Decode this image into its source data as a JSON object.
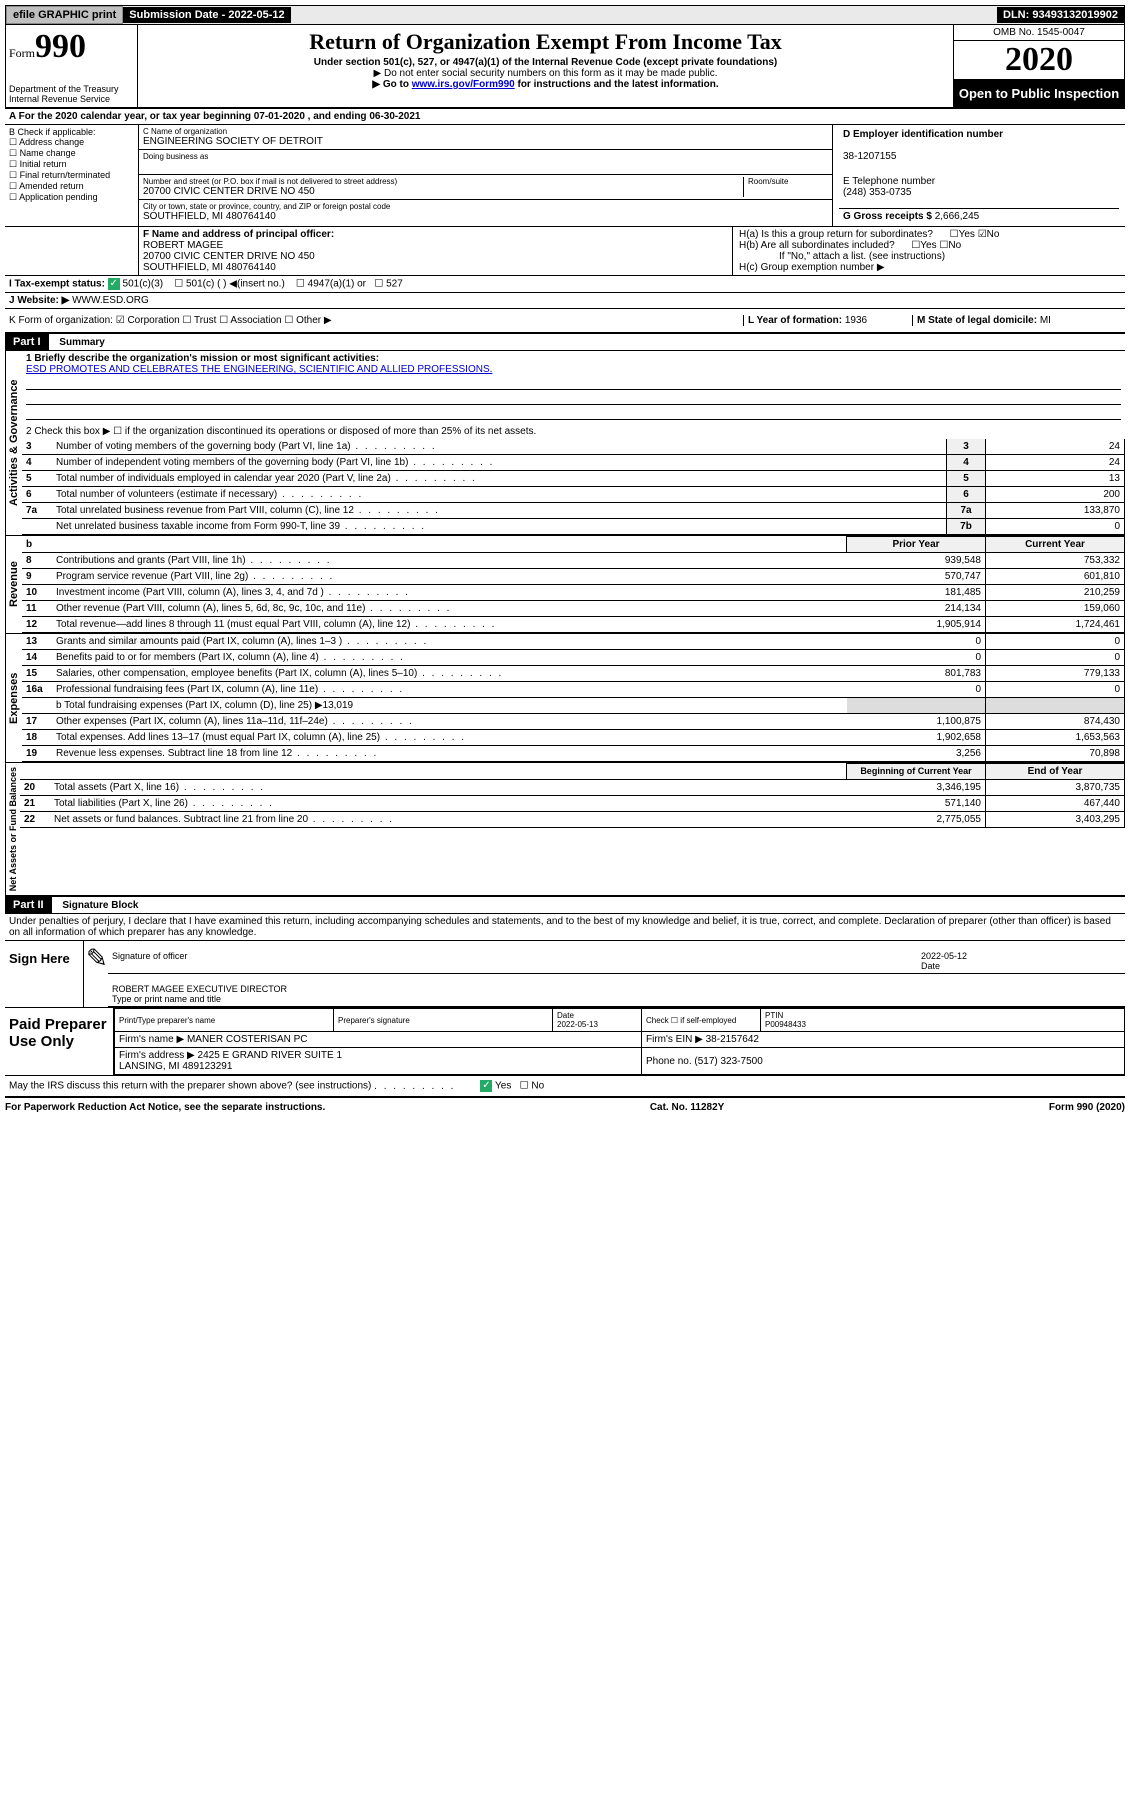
{
  "topbar": {
    "efile": "efile GRAPHIC print",
    "sub_label": "Submission Date - ",
    "sub_date": "2022-05-12",
    "dln": "DLN: 93493132019902"
  },
  "header": {
    "form_label": "Form",
    "form_num": "990",
    "dept": "Department of the Treasury\nInternal Revenue Service",
    "title": "Return of Organization Exempt From Income Tax",
    "sub1": "Under section 501(c), 527, or 4947(a)(1) of the Internal Revenue Code (except private foundations)",
    "sub2": "▶ Do not enter social security numbers on this form as it may be made public.",
    "sub3_pre": "▶ Go to ",
    "sub3_link": "www.irs.gov/Form990",
    "sub3_post": " for instructions and the latest information.",
    "omb": "OMB No. 1545-0047",
    "year": "2020",
    "open": "Open to Public Inspection"
  },
  "line_a": "A For the 2020 calendar year, or tax year beginning 07-01-2020   , and ending 06-30-2021",
  "b": {
    "hdr": "B Check if applicable:",
    "opts": [
      "☐ Address change",
      "☐ Name change",
      "☐ Initial return",
      "☐ Final return/terminated",
      "☐ Amended return",
      "☐ Application pending"
    ]
  },
  "c": {
    "name_lbl": "C Name of organization",
    "name": "ENGINEERING SOCIETY OF DETROIT",
    "dba_lbl": "Doing business as",
    "addr_lbl": "Number and street (or P.O. box if mail is not delivered to street address)",
    "room_lbl": "Room/suite",
    "addr": "20700 CIVIC CENTER DRIVE NO 450",
    "city_lbl": "City or town, state or province, country, and ZIP or foreign postal code",
    "city": "SOUTHFIELD, MI  480764140"
  },
  "d": {
    "lbl": "D Employer identification number",
    "val": "38-1207155"
  },
  "e": {
    "lbl": "E Telephone number",
    "val": "(248) 353-0735"
  },
  "g": {
    "lbl": "G Gross receipts $ ",
    "val": "2,666,245"
  },
  "f": {
    "lbl": "F Name and address of principal officer:",
    "name": "ROBERT MAGEE",
    "addr1": "20700 CIVIC CENTER DRIVE NO 450",
    "addr2": "SOUTHFIELD, MI  480764140"
  },
  "h": {
    "ha": "H(a)  Is this a group return for subordinates?",
    "hb": "H(b)  Are all subordinates included?",
    "note": "If \"No,\" attach a list. (see instructions)",
    "hc": "H(c)  Group exemption number ▶"
  },
  "i": {
    "lbl": "I   Tax-exempt status:",
    "o1": "501(c)(3)",
    "o2": "501(c) (  ) ◀(insert no.)",
    "o3": "4947(a)(1) or",
    "o4": "527"
  },
  "j": {
    "lbl": "J   Website: ▶ ",
    "val": "WWW.ESD.ORG"
  },
  "k": "K Form of organization:  ☑ Corporation  ☐ Trust  ☐ Association  ☐ Other ▶",
  "l": {
    "lbl": "L Year of formation: ",
    "val": "1936"
  },
  "m": {
    "lbl": "M State of legal domicile: ",
    "val": "MI"
  },
  "part1": {
    "hdr": "Part I",
    "title": "Summary",
    "q1_lbl": "1  Briefly describe the organization's mission or most significant activities:",
    "q1_val": "ESD PROMOTES AND CELEBRATES THE ENGINEERING, SCIENTIFIC AND ALLIED PROFESSIONS.",
    "q2": "2   Check this box ▶ ☐  if the organization discontinued its operations or disposed of more than 25% of its net assets.",
    "gov_rows": [
      {
        "n": "3",
        "t": "Number of voting members of the governing body (Part VI, line 1a)",
        "c": "3",
        "v": "24"
      },
      {
        "n": "4",
        "t": "Number of independent voting members of the governing body (Part VI, line 1b)",
        "c": "4",
        "v": "24"
      },
      {
        "n": "5",
        "t": "Total number of individuals employed in calendar year 2020 (Part V, line 2a)",
        "c": "5",
        "v": "13"
      },
      {
        "n": "6",
        "t": "Total number of volunteers (estimate if necessary)",
        "c": "6",
        "v": "200"
      },
      {
        "n": "7a",
        "t": "Total unrelated business revenue from Part VIII, column (C), line 12",
        "c": "7a",
        "v": "133,870"
      },
      {
        "n": "",
        "t": "Net unrelated business taxable income from Form 990-T, line 39",
        "c": "7b",
        "v": "0"
      }
    ],
    "col_prior": "Prior Year",
    "col_curr": "Current Year",
    "rev_rows": [
      {
        "n": "8",
        "t": "Contributions and grants (Part VIII, line 1h)",
        "p": "939,548",
        "c": "753,332"
      },
      {
        "n": "9",
        "t": "Program service revenue (Part VIII, line 2g)",
        "p": "570,747",
        "c": "601,810"
      },
      {
        "n": "10",
        "t": "Investment income (Part VIII, column (A), lines 3, 4, and 7d )",
        "p": "181,485",
        "c": "210,259"
      },
      {
        "n": "11",
        "t": "Other revenue (Part VIII, column (A), lines 5, 6d, 8c, 9c, 10c, and 11e)",
        "p": "214,134",
        "c": "159,060"
      },
      {
        "n": "12",
        "t": "Total revenue—add lines 8 through 11 (must equal Part VIII, column (A), line 12)",
        "p": "1,905,914",
        "c": "1,724,461"
      }
    ],
    "exp_rows": [
      {
        "n": "13",
        "t": "Grants and similar amounts paid (Part IX, column (A), lines 1–3 )",
        "p": "0",
        "c": "0"
      },
      {
        "n": "14",
        "t": "Benefits paid to or for members (Part IX, column (A), line 4)",
        "p": "0",
        "c": "0"
      },
      {
        "n": "15",
        "t": "Salaries, other compensation, employee benefits (Part IX, column (A), lines 5–10)",
        "p": "801,783",
        "c": "779,133"
      },
      {
        "n": "16a",
        "t": "Professional fundraising fees (Part IX, column (A), line 11e)",
        "p": "0",
        "c": "0"
      }
    ],
    "exp_b": "b   Total fundraising expenses (Part IX, column (D), line 25) ▶13,019",
    "exp_rows2": [
      {
        "n": "17",
        "t": "Other expenses (Part IX, column (A), lines 11a–11d, 11f–24e)",
        "p": "1,100,875",
        "c": "874,430"
      },
      {
        "n": "18",
        "t": "Total expenses. Add lines 13–17 (must equal Part IX, column (A), line 25)",
        "p": "1,902,658",
        "c": "1,653,563"
      },
      {
        "n": "19",
        "t": "Revenue less expenses. Subtract line 18 from line 12",
        "p": "3,256",
        "c": "70,898"
      }
    ],
    "col_begin": "Beginning of Current Year",
    "col_end": "End of Year",
    "na_rows": [
      {
        "n": "20",
        "t": "Total assets (Part X, line 16)",
        "p": "3,346,195",
        "c": "3,870,735"
      },
      {
        "n": "21",
        "t": "Total liabilities (Part X, line 26)",
        "p": "571,140",
        "c": "467,440"
      },
      {
        "n": "22",
        "t": "Net assets or fund balances. Subtract line 21 from line 20",
        "p": "2,775,055",
        "c": "3,403,295"
      }
    ]
  },
  "part2": {
    "hdr": "Part II",
    "title": "Signature Block",
    "decl": "Under penalties of perjury, I declare that I have examined this return, including accompanying schedules and statements, and to the best of my knowledge and belief, it is true, correct, and complete. Declaration of preparer (other than officer) is based on all information of which preparer has any knowledge."
  },
  "sign": {
    "lbl": "Sign Here",
    "sig_lbl": "Signature of officer",
    "date": "2022-05-12",
    "date_lbl": "Date",
    "name": "ROBERT MAGEE  EXECUTIVE DIRECTOR",
    "name_lbl": "Type or print name and title"
  },
  "paid": {
    "lbl": "Paid Preparer Use Only",
    "c1": "Print/Type preparer's name",
    "c2": "Preparer's signature",
    "c3": "Date\n2022-05-13",
    "c4": "Check ☐ if self-employed",
    "c5_lbl": "PTIN",
    "c5": "P00948433",
    "firm_lbl": "Firm's name    ▶ ",
    "firm": "MANER COSTERISAN PC",
    "ein_lbl": "Firm's EIN ▶ ",
    "ein": "38-2157642",
    "addr_lbl": "Firm's address ▶ ",
    "addr": "2425 E GRAND RIVER SUITE 1\nLANSING, MI  489123291",
    "phone_lbl": "Phone no. ",
    "phone": "(517) 323-7500"
  },
  "discuss": "May the IRS discuss this return with the preparer shown above? (see instructions)",
  "footer": {
    "left": "For Paperwork Reduction Act Notice, see the separate instructions.",
    "mid": "Cat. No. 11282Y",
    "right": "Form 990 (2020)"
  },
  "labels": {
    "gov": "Activities & Governance",
    "rev": "Revenue",
    "exp": "Expenses",
    "na": "Net Assets or Fund Balances",
    "b": "b"
  }
}
